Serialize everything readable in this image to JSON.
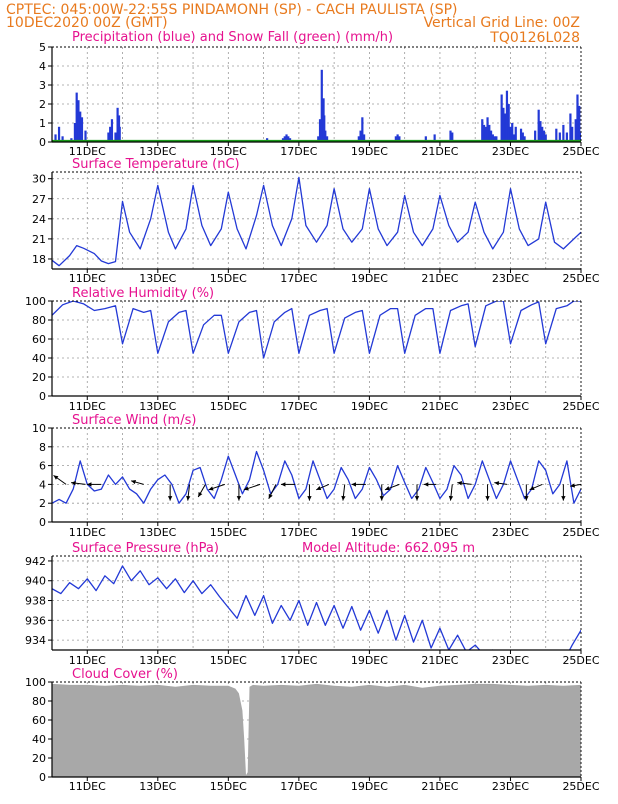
{
  "header": {
    "left_line1": "CPTEC:   045:00W-22:55S   PINDAMONH (SP) - CACH PAULISTA (SP)",
    "left_line2": "10DEC2020 00Z (GMT)",
    "right_line2": "Vertical Grid Line: 00Z",
    "right_line3": "TQ0126L028",
    "color": "#e87a1e"
  },
  "colors": {
    "title": "#e6128f",
    "series": "#2339d6",
    "snow": "#1a9a1a",
    "cloud": "#a8a8a8",
    "axis": "#000000"
  },
  "date_ticks": [
    "11DEC",
    "13DEC",
    "15DEC",
    "17DEC",
    "19DEC",
    "21DEC",
    "23DEC",
    "25DEC"
  ],
  "chart_data": [
    {
      "type": "bar",
      "title": "Precipitation (blue) and Snow Fall (green) (mm/h)",
      "ylim": [
        0,
        5
      ],
      "yticks": [
        "0",
        "1",
        "2",
        "3",
        "4",
        "5"
      ],
      "xlim_days": [
        10,
        25
      ],
      "bars": [
        [
          10.1,
          0.4
        ],
        [
          10.2,
          0.8
        ],
        [
          10.3,
          0.3
        ],
        [
          10.55,
          0.2
        ],
        [
          10.65,
          1.0
        ],
        [
          10.7,
          2.6
        ],
        [
          10.75,
          2.2
        ],
        [
          10.8,
          1.6
        ],
        [
          10.85,
          1.3
        ],
        [
          10.95,
          0.6
        ],
        [
          11.6,
          0.5
        ],
        [
          11.65,
          0.8
        ],
        [
          11.7,
          1.2
        ],
        [
          11.8,
          0.5
        ],
        [
          11.83,
          0.4
        ],
        [
          11.86,
          1.8
        ],
        [
          11.9,
          1.4
        ],
        [
          11.92,
          0.8
        ],
        [
          13.0,
          0.05
        ],
        [
          14.5,
          0.05
        ],
        [
          15.0,
          0.05
        ],
        [
          16.1,
          0.2
        ],
        [
          16.55,
          0.2
        ],
        [
          16.6,
          0.3
        ],
        [
          16.65,
          0.4
        ],
        [
          16.7,
          0.3
        ],
        [
          16.75,
          0.2
        ],
        [
          17.55,
          0.3
        ],
        [
          17.6,
          1.2
        ],
        [
          17.65,
          3.8
        ],
        [
          17.7,
          2.3
        ],
        [
          17.72,
          1.4
        ],
        [
          17.75,
          0.6
        ],
        [
          17.8,
          0.3
        ],
        [
          18.7,
          0.3
        ],
        [
          18.75,
          0.6
        ],
        [
          18.8,
          1.3
        ],
        [
          18.85,
          0.4
        ],
        [
          19.75,
          0.3
        ],
        [
          19.8,
          0.4
        ],
        [
          19.85,
          0.3
        ],
        [
          20.6,
          0.3
        ],
        [
          20.85,
          0.4
        ],
        [
          21.3,
          0.6
        ],
        [
          21.35,
          0.5
        ],
        [
          21.4,
          0.1
        ],
        [
          22.2,
          1.2
        ],
        [
          22.25,
          0.9
        ],
        [
          22.3,
          0.8
        ],
        [
          22.35,
          1.3
        ],
        [
          22.4,
          0.9
        ],
        [
          22.45,
          0.6
        ],
        [
          22.5,
          0.4
        ],
        [
          22.55,
          0.3
        ],
        [
          22.6,
          0.3
        ],
        [
          22.75,
          2.5
        ],
        [
          22.8,
          1.8
        ],
        [
          22.85,
          1.5
        ],
        [
          22.9,
          2.7
        ],
        [
          22.95,
          2.0
        ],
        [
          23.0,
          0.8
        ],
        [
          23.05,
          1.0
        ],
        [
          23.1,
          0.4
        ],
        [
          23.15,
          0.8
        ],
        [
          23.3,
          0.7
        ],
        [
          23.35,
          0.5
        ],
        [
          23.4,
          0.3
        ],
        [
          23.7,
          0.6
        ],
        [
          23.8,
          1.7
        ],
        [
          23.85,
          1.1
        ],
        [
          23.9,
          0.8
        ],
        [
          23.95,
          0.6
        ],
        [
          24.0,
          0.4
        ],
        [
          24.3,
          0.7
        ],
        [
          24.4,
          0.5
        ],
        [
          24.5,
          0.9
        ],
        [
          24.6,
          0.5
        ],
        [
          24.7,
          1.5
        ],
        [
          24.75,
          0.8
        ],
        [
          24.85,
          1.2
        ],
        [
          24.9,
          2.5
        ],
        [
          24.95,
          1.9
        ],
        [
          25.0,
          0.5
        ]
      ]
    },
    {
      "type": "line",
      "title": "Surface Temperature (nC)",
      "ylim": [
        16.5,
        31
      ],
      "yticks": [
        "18",
        "21",
        "24",
        "27",
        "30"
      ],
      "ytick_values": [
        18,
        21,
        24,
        27,
        30
      ],
      "x_days": [
        10.0,
        10.2,
        10.5,
        10.7,
        10.9,
        11.2,
        11.4,
        11.6,
        11.8,
        12.0,
        12.2,
        12.5,
        12.8,
        13.0,
        13.3,
        13.5,
        13.8,
        14.0,
        14.25,
        14.5,
        14.8,
        15.0,
        15.25,
        15.5,
        15.8,
        16.0,
        16.25,
        16.5,
        16.8,
        17.0,
        17.2,
        17.5,
        17.8,
        18.0,
        18.25,
        18.5,
        18.8,
        19.0,
        19.25,
        19.5,
        19.8,
        20.0,
        20.25,
        20.5,
        20.8,
        21.0,
        21.25,
        21.5,
        21.8,
        22.0,
        22.25,
        22.5,
        22.8,
        23.0,
        23.25,
        23.5,
        23.8,
        24.0,
        24.25,
        24.5,
        24.8,
        25.0
      ],
      "values": [
        17.8,
        17.0,
        18.5,
        20.0,
        19.6,
        18.8,
        17.7,
        17.3,
        17.6,
        26.6,
        22.0,
        19.5,
        24.0,
        29.0,
        22.0,
        19.5,
        22.5,
        29.0,
        23.0,
        20.0,
        22.5,
        28.0,
        22.5,
        19.5,
        24.5,
        29.0,
        23.0,
        20.0,
        24.0,
        30.2,
        23.0,
        20.5,
        23.0,
        28.5,
        22.5,
        20.5,
        22.5,
        28.5,
        22.5,
        20.0,
        22.0,
        27.5,
        22.0,
        20.0,
        22.5,
        27.5,
        23.0,
        20.5,
        22.0,
        26.5,
        22.0,
        19.5,
        22.0,
        28.5,
        22.5,
        20.0,
        21.0,
        26.5,
        20.5,
        19.5,
        21.0,
        22.0
      ]
    },
    {
      "type": "line",
      "title": "Relative Humidity (%)",
      "ylim": [
        0,
        100
      ],
      "yticks": [
        "0",
        "20",
        "40",
        "60",
        "80",
        "100"
      ],
      "ytick_values": [
        0,
        20,
        40,
        60,
        80,
        100
      ],
      "x_days": [
        10.0,
        10.3,
        10.6,
        10.9,
        11.2,
        11.5,
        11.8,
        12.0,
        12.3,
        12.6,
        12.8,
        13.0,
        13.3,
        13.6,
        13.8,
        14.0,
        14.3,
        14.6,
        14.8,
        15.0,
        15.3,
        15.6,
        15.8,
        16.0,
        16.3,
        16.6,
        16.8,
        17.0,
        17.3,
        17.6,
        17.8,
        18.0,
        18.3,
        18.6,
        18.8,
        19.0,
        19.3,
        19.6,
        19.8,
        20.0,
        20.3,
        20.6,
        20.8,
        21.0,
        21.3,
        21.6,
        21.8,
        22.0,
        22.3,
        22.6,
        22.8,
        23.0,
        23.3,
        23.6,
        23.8,
        24.0,
        24.3,
        24.6,
        24.8,
        25.0
      ],
      "values": [
        85,
        96,
        100,
        97,
        90,
        92,
        95,
        55,
        92,
        88,
        90,
        45,
        78,
        88,
        90,
        45,
        75,
        85,
        85,
        45,
        78,
        88,
        90,
        40,
        78,
        88,
        92,
        45,
        85,
        90,
        92,
        45,
        82,
        88,
        90,
        45,
        85,
        92,
        92,
        45,
        85,
        92,
        92,
        45,
        90,
        95,
        97,
        52,
        95,
        100,
        100,
        55,
        90,
        96,
        99,
        55,
        92,
        95,
        100,
        100
      ]
    },
    {
      "type": "line",
      "title": "Surface Wind (m/s)",
      "ylim": [
        0,
        10
      ],
      "yticks": [
        "0",
        "2",
        "4",
        "6",
        "8",
        "10"
      ],
      "ytick_values": [
        0,
        2,
        4,
        6,
        8,
        10
      ],
      "x_days": [
        10.0,
        10.2,
        10.4,
        10.6,
        10.8,
        11.0,
        11.2,
        11.4,
        11.6,
        11.8,
        12.0,
        12.2,
        12.4,
        12.6,
        12.8,
        13.0,
        13.2,
        13.4,
        13.6,
        13.8,
        14.0,
        14.2,
        14.4,
        14.6,
        14.8,
        15.0,
        15.2,
        15.4,
        15.6,
        15.8,
        16.0,
        16.2,
        16.4,
        16.6,
        16.8,
        17.0,
        17.2,
        17.4,
        17.6,
        17.8,
        18.0,
        18.2,
        18.4,
        18.6,
        18.8,
        19.0,
        19.2,
        19.4,
        19.6,
        19.8,
        20.0,
        20.2,
        20.4,
        20.6,
        20.8,
        21.0,
        21.2,
        21.4,
        21.6,
        21.8,
        22.0,
        22.2,
        22.4,
        22.6,
        22.8,
        23.0,
        23.2,
        23.4,
        23.6,
        23.8,
        24.0,
        24.2,
        24.4,
        24.6,
        24.8,
        25.0
      ],
      "values": [
        2.0,
        2.4,
        2.0,
        3.5,
        6.5,
        4.0,
        3.3,
        3.5,
        5.0,
        4.0,
        4.8,
        3.5,
        3.0,
        2.0,
        3.5,
        4.5,
        5.0,
        4.0,
        2.0,
        3.0,
        5.5,
        5.8,
        3.5,
        2.5,
        4.5,
        7.0,
        5.0,
        3.0,
        4.5,
        7.5,
        5.5,
        3.0,
        4.0,
        6.5,
        5.0,
        2.5,
        3.5,
        6.5,
        4.5,
        2.5,
        3.5,
        5.8,
        4.5,
        2.5,
        3.5,
        5.8,
        4.5,
        2.8,
        3.5,
        6.0,
        4.2,
        2.5,
        3.5,
        5.8,
        4.2,
        2.5,
        3.5,
        6.0,
        5.0,
        2.5,
        4.0,
        6.5,
        4.5,
        2.5,
        4.0,
        6.5,
        4.5,
        2.5,
        3.5,
        6.5,
        5.5,
        3.0,
        4.0,
        6.5,
        2.0,
        3.5
      ],
      "arrows": [
        {
          "x_day": 10.4,
          "u": -0.7,
          "v": 0.5
        },
        {
          "x_day": 10.95,
          "u": -0.8,
          "v": 0.1
        },
        {
          "x_day": 11.4,
          "u": -0.8,
          "v": 0.0
        },
        {
          "x_day": 12.6,
          "u": -0.7,
          "v": 0.2
        },
        {
          "x_day": 13.35,
          "u": 0.0,
          "v": -0.9
        },
        {
          "x_day": 13.9,
          "u": -0.1,
          "v": -0.9
        },
        {
          "x_day": 14.35,
          "u": -0.4,
          "v": -0.7
        },
        {
          "x_day": 14.9,
          "u": -0.9,
          "v": -0.3
        },
        {
          "x_day": 15.3,
          "u": 0.0,
          "v": -0.9
        },
        {
          "x_day": 15.9,
          "u": -0.9,
          "v": -0.3
        },
        {
          "x_day": 16.35,
          "u": -0.4,
          "v": -0.8
        },
        {
          "x_day": 16.9,
          "u": -0.8,
          "v": 0.0
        },
        {
          "x_day": 17.3,
          "u": 0.0,
          "v": -0.9
        },
        {
          "x_day": 17.85,
          "u": -0.7,
          "v": -0.3
        },
        {
          "x_day": 18.3,
          "u": -0.1,
          "v": -0.9
        },
        {
          "x_day": 18.9,
          "u": -0.8,
          "v": 0.0
        },
        {
          "x_day": 19.35,
          "u": 0.0,
          "v": -0.9
        },
        {
          "x_day": 19.85,
          "u": -0.8,
          "v": -0.3
        },
        {
          "x_day": 20.35,
          "u": 0.0,
          "v": -0.9
        },
        {
          "x_day": 20.9,
          "u": -0.7,
          "v": 0.0
        },
        {
          "x_day": 21.35,
          "u": -0.1,
          "v": -0.9
        },
        {
          "x_day": 21.9,
          "u": -0.8,
          "v": 0.1
        },
        {
          "x_day": 22.35,
          "u": 0.0,
          "v": -0.9
        },
        {
          "x_day": 22.9,
          "u": -0.7,
          "v": 0.1
        },
        {
          "x_day": 23.45,
          "u": 0.0,
          "v": -0.9
        },
        {
          "x_day": 23.9,
          "u": -0.7,
          "v": -0.3
        },
        {
          "x_day": 24.5,
          "u": 0.0,
          "v": -0.9
        },
        {
          "x_day": 25.0,
          "u": -0.6,
          "v": -0.1
        }
      ]
    },
    {
      "type": "line",
      "title": "Surface Pressure (hPa)",
      "subtitle": "Model Altitude: 662.095 m",
      "ylim": [
        933,
        942.5
      ],
      "yticks": [
        "934",
        "936",
        "938",
        "940",
        "942"
      ],
      "ytick_values": [
        934,
        936,
        938,
        940,
        942
      ],
      "x_days": [
        10.0,
        10.25,
        10.5,
        10.75,
        11.0,
        11.25,
        11.5,
        11.75,
        12.0,
        12.25,
        12.5,
        12.75,
        13.0,
        13.25,
        13.5,
        13.75,
        14.0,
        14.25,
        14.5,
        14.75,
        15.0,
        15.25,
        15.5,
        15.75,
        16.0,
        16.25,
        16.5,
        16.75,
        17.0,
        17.25,
        17.5,
        17.75,
        18.0,
        18.25,
        18.5,
        18.75,
        19.0,
        19.25,
        19.5,
        19.75,
        20.0,
        20.25,
        20.5,
        20.75,
        21.0,
        21.25,
        21.5,
        21.75,
        22.0,
        22.25,
        22.5,
        22.75,
        23.0,
        23.25,
        23.5,
        23.75,
        24.0,
        24.25,
        24.5,
        24.75,
        25.0
      ],
      "values": [
        939.2,
        938.7,
        939.8,
        939.2,
        940.2,
        939.0,
        940.5,
        939.7,
        941.5,
        940.0,
        941.0,
        939.6,
        940.3,
        939.2,
        940.2,
        938.8,
        940.0,
        938.7,
        939.6,
        938.4,
        937.3,
        936.2,
        938.5,
        936.5,
        938.5,
        935.7,
        937.5,
        936.0,
        938.0,
        935.5,
        937.8,
        935.5,
        937.5,
        935.2,
        937.4,
        935.0,
        937.0,
        934.7,
        937.0,
        934.0,
        936.5,
        933.8,
        936.0,
        933.2,
        935.2,
        933.0,
        934.5,
        932.8,
        933.5,
        932.5,
        933.0,
        932.2,
        932.8,
        932.0,
        932.5,
        931.8,
        932.0,
        932.5,
        931.8,
        933.5,
        935.0
      ]
    },
    {
      "type": "area",
      "title": "Cloud Cover (%)",
      "ylim": [
        0,
        100
      ],
      "yticks": [
        "0",
        "20",
        "40",
        "60",
        "80",
        "100"
      ],
      "ytick_values": [
        0,
        20,
        40,
        60,
        80,
        100
      ],
      "x_days": [
        10.0,
        10.5,
        11.0,
        11.5,
        12.0,
        12.5,
        13.0,
        13.5,
        14.0,
        14.5,
        15.0,
        15.2,
        15.3,
        15.4,
        15.45,
        15.5,
        15.55,
        15.6,
        15.7,
        16.0,
        16.5,
        17.0,
        17.5,
        18.0,
        18.5,
        19.0,
        19.5,
        20.0,
        20.5,
        21.0,
        21.5,
        22.0,
        22.5,
        23.0,
        23.5,
        24.0,
        24.5,
        25.0
      ],
      "values": [
        98,
        97,
        97,
        96,
        97,
        96,
        97,
        95,
        97,
        96,
        96,
        93,
        88,
        70,
        40,
        2,
        5,
        95,
        97,
        96,
        97,
        96,
        98,
        96,
        95,
        97,
        95,
        97,
        94,
        96,
        97,
        98,
        98,
        97,
        96,
        97,
        96,
        97
      ]
    }
  ]
}
